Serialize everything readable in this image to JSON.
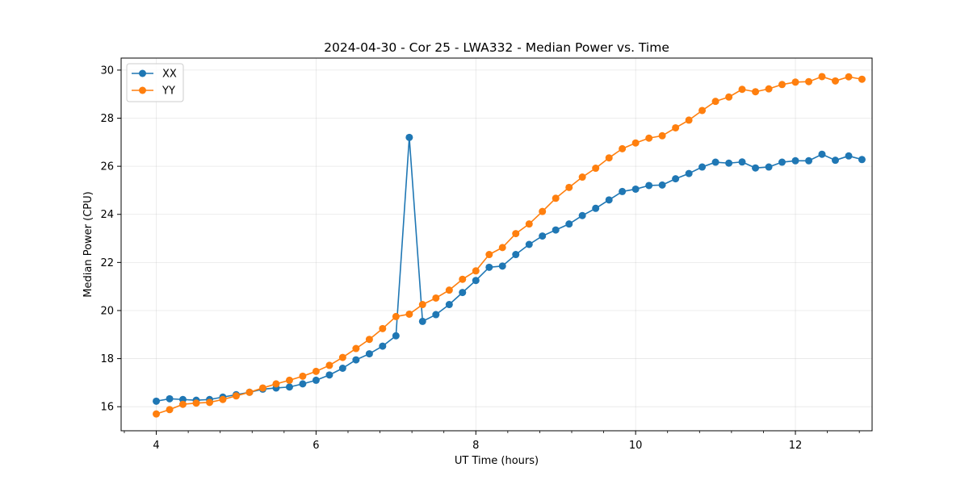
{
  "chart_data": {
    "type": "line",
    "title": "2024-04-30 - Cor 25 - LWA332 - Median Power vs. Time",
    "xlabel": "UT Time (hours)",
    "ylabel": "Median Power (CPU)",
    "xlim": [
      3.56,
      12.96
    ],
    "ylim": [
      15.0,
      30.5
    ],
    "xticks": [
      4,
      6,
      8,
      10,
      12
    ],
    "xtick_labels": [
      "4",
      "6",
      "8",
      "10",
      "12"
    ],
    "yticks": [
      16,
      18,
      20,
      22,
      24,
      26,
      28,
      30
    ],
    "ytick_labels": [
      "16",
      "18",
      "20",
      "22",
      "24",
      "26",
      "28",
      "30"
    ],
    "grid": true,
    "legend_position": "top-left",
    "x": [
      4.0,
      4.167,
      4.333,
      4.5,
      4.667,
      4.833,
      5.0,
      5.167,
      5.333,
      5.5,
      5.667,
      5.833,
      6.0,
      6.167,
      6.333,
      6.5,
      6.667,
      6.833,
      7.0,
      7.167,
      7.333,
      7.5,
      7.667,
      7.833,
      8.0,
      8.167,
      8.333,
      8.5,
      8.667,
      8.833,
      9.0,
      9.167,
      9.333,
      9.5,
      9.667,
      9.833,
      10.0,
      10.167,
      10.333,
      10.5,
      10.667,
      10.833,
      11.0,
      11.167,
      11.333,
      11.5,
      11.667,
      11.833,
      12.0,
      12.167,
      12.333,
      12.5,
      12.667,
      12.833
    ],
    "series": [
      {
        "name": "XX",
        "color": "#1f77b4",
        "values": [
          16.23,
          16.33,
          16.3,
          16.27,
          16.3,
          16.4,
          16.5,
          16.6,
          16.73,
          16.78,
          16.82,
          16.95,
          17.1,
          17.32,
          17.6,
          17.95,
          18.2,
          18.52,
          18.95,
          27.2,
          19.55,
          19.83,
          20.25,
          20.75,
          21.25,
          21.8,
          21.85,
          22.33,
          22.75,
          23.1,
          23.35,
          23.6,
          23.95,
          24.25,
          24.6,
          24.95,
          25.05,
          25.2,
          25.22,
          25.48,
          25.7,
          25.97,
          26.17,
          26.13,
          26.18,
          25.93,
          25.97,
          26.17,
          26.23,
          26.23,
          26.5,
          26.25,
          26.43,
          26.28
        ]
      },
      {
        "name": "YY",
        "color": "#ff7f0e",
        "values": [
          15.7,
          15.88,
          16.1,
          16.15,
          16.18,
          16.3,
          16.45,
          16.6,
          16.78,
          16.95,
          17.1,
          17.27,
          17.47,
          17.72,
          18.05,
          18.42,
          18.8,
          19.25,
          19.75,
          19.85,
          20.25,
          20.52,
          20.85,
          21.3,
          21.65,
          22.33,
          22.62,
          23.2,
          23.6,
          24.12,
          24.67,
          25.12,
          25.55,
          25.92,
          26.35,
          26.73,
          26.97,
          27.17,
          27.27,
          27.6,
          27.92,
          28.32,
          28.7,
          28.88,
          29.2,
          29.1,
          29.22,
          29.4,
          29.5,
          29.52,
          29.73,
          29.55,
          29.72,
          29.62
        ]
      }
    ]
  }
}
